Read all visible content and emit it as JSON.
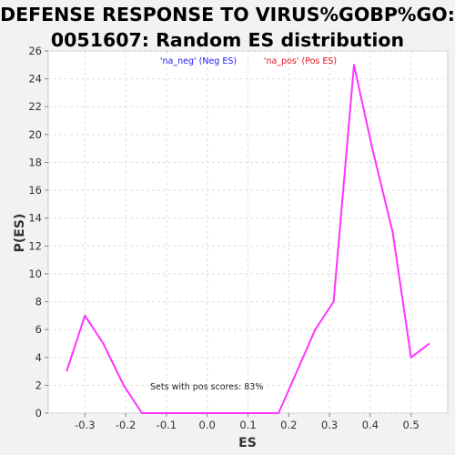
{
  "chart_data": {
    "type": "line",
    "title_lines": [
      "DEFENSE RESPONSE TO VIRUS%GOBP%GO:",
      "0051607: Random ES distribution"
    ],
    "xlabel": "ES",
    "ylabel": "P(ES)",
    "xlim": [
      -0.39,
      0.59
    ],
    "ylim": [
      0,
      26
    ],
    "xticks": [
      -0.3,
      -0.2,
      -0.1,
      0.0,
      0.1,
      0.2,
      0.3,
      0.4,
      0.5
    ],
    "xtick_labels": [
      "-0.3",
      "-0.2",
      "-0.1",
      "0.0",
      "0.1",
      "0.2",
      "0.3",
      "0.4",
      "0.5"
    ],
    "yticks": [
      0,
      2,
      4,
      6,
      8,
      10,
      12,
      14,
      16,
      18,
      20,
      22,
      24,
      26
    ],
    "ytick_labels": [
      "0",
      "2",
      "4",
      "6",
      "8",
      "10",
      "12",
      "14",
      "16",
      "18",
      "20",
      "22",
      "24",
      "26"
    ],
    "grid": true,
    "legend": [
      {
        "label": "'na_neg' (Neg ES)",
        "color": "#1a1aff"
      },
      {
        "label": "'na_pos' (Pos ES)",
        "color": "#e0141e"
      }
    ],
    "annotation": "Sets with pos scores: 83%",
    "series": [
      {
        "color": "#ff33ff",
        "x": [
          -0.345,
          -0.3,
          -0.255,
          -0.205,
          -0.16,
          -0.115,
          -0.07,
          -0.025,
          0.02,
          0.065,
          0.11,
          0.155,
          0.175,
          0.22,
          0.265,
          0.31,
          0.36,
          0.405,
          0.455,
          0.5,
          0.545
        ],
        "y": [
          3,
          7,
          5,
          2,
          0,
          0,
          0,
          0,
          0,
          0,
          0,
          0,
          0,
          3,
          6,
          8,
          25,
          19,
          13,
          4,
          5
        ]
      }
    ]
  }
}
